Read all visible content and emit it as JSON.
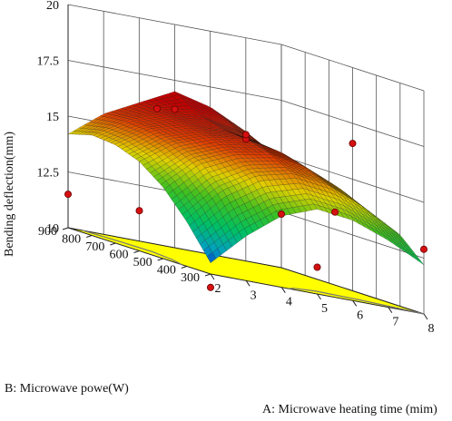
{
  "chart_data": {
    "type": "surface",
    "z_axis": {
      "label": "Bending deflection(mm)",
      "ticks": [
        "10",
        "12.5",
        "15",
        "17.5",
        "20"
      ],
      "range": [
        10,
        20
      ]
    },
    "x_axis": {
      "label": "A: Microwave heating time (mim)",
      "ticks": [
        "2",
        "3",
        "4",
        "5",
        "6",
        "7",
        "8"
      ],
      "range": [
        2,
        8
      ]
    },
    "y_axis": {
      "label": "B: Microwave powe(W)",
      "ticks": [
        "300",
        "400",
        "500",
        "600",
        "700",
        "800",
        "900"
      ],
      "range": [
        300,
        900
      ]
    },
    "floor_color": "#ffff00",
    "surface_colormap": [
      "#0000cc",
      "#00a0c0",
      "#00c060",
      "#40c020",
      "#e0d000",
      "#e04000",
      "#c00000"
    ],
    "surface_samples": {
      "x": [
        2,
        3,
        4,
        5,
        6,
        7,
        8
      ],
      "y": [
        300,
        400,
        500,
        600,
        700,
        800,
        900
      ],
      "z": [
        [
          10.5,
          12.0,
          13.2,
          13.8,
          13.6,
          13.0,
          12.2
        ],
        [
          12.0,
          13.6,
          14.6,
          15.0,
          14.8,
          14.1,
          13.2
        ],
        [
          13.2,
          14.6,
          15.3,
          15.6,
          15.3,
          14.6,
          13.6
        ],
        [
          14.0,
          15.1,
          15.7,
          15.9,
          15.6,
          14.9,
          13.9
        ],
        [
          14.4,
          15.4,
          15.9,
          16.0,
          15.7,
          15.0,
          13.9
        ],
        [
          14.5,
          15.5,
          16.1,
          16.3,
          16.0,
          15.3,
          14.2
        ],
        [
          14.2,
          15.4,
          16.2,
          17.0,
          16.6,
          15.8,
          14.6
        ]
      ]
    },
    "design_points": [
      {
        "x": 2,
        "y": 300,
        "z": 9.4
      },
      {
        "x": 2,
        "y": 900,
        "z": 11.5
      },
      {
        "x": 2,
        "y": 600,
        "z": 11.8
      },
      {
        "x": 5,
        "y": 300,
        "z": 11.2
      },
      {
        "x": 8,
        "y": 300,
        "z": 12.9
      },
      {
        "x": 5,
        "y": 600,
        "z": 15.9
      },
      {
        "x": 5,
        "y": 600,
        "z": 16.1
      },
      {
        "x": 8,
        "y": 900,
        "z": 12.4
      },
      {
        "x": 5,
        "y": 900,
        "z": 16.2
      },
      {
        "x": 8,
        "y": 600,
        "z": 16.6
      },
      {
        "x": 6.5,
        "y": 450,
        "z": 13.6
      },
      {
        "x": 3.5,
        "y": 750,
        "z": 16.3
      }
    ]
  }
}
